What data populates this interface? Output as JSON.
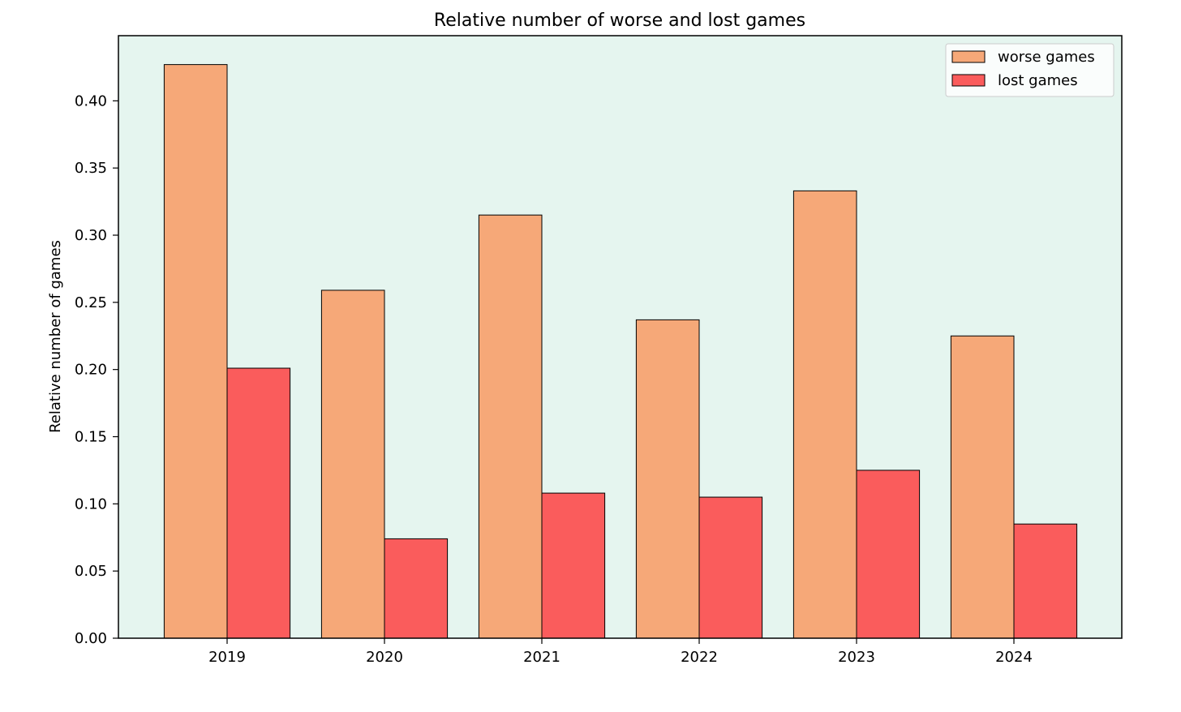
{
  "chart_data": {
    "type": "bar",
    "title": "Relative number of worse and lost games",
    "xlabel": "",
    "ylabel": "Relative number of games",
    "categories": [
      "2019",
      "2020",
      "2021",
      "2022",
      "2023",
      "2024"
    ],
    "series": [
      {
        "name": "worse games",
        "color": "#F6A878",
        "values": [
          0.427,
          0.259,
          0.315,
          0.237,
          0.333,
          0.225
        ]
      },
      {
        "name": "lost games",
        "color": "#FA5C5C",
        "values": [
          0.201,
          0.074,
          0.108,
          0.105,
          0.125,
          0.085
        ]
      }
    ],
    "ylim": [
      0,
      0.4485
    ],
    "yticks": [
      0.0,
      0.05,
      0.1,
      0.15,
      0.2,
      0.25,
      0.3,
      0.35,
      0.4
    ],
    "ytick_labels": [
      "0.00",
      "0.05",
      "0.10",
      "0.15",
      "0.20",
      "0.25",
      "0.30",
      "0.35",
      "0.40"
    ],
    "grid": false,
    "legend_position": "top-right",
    "plot_background": "#E5F5EF",
    "edge_color": "#000000"
  }
}
